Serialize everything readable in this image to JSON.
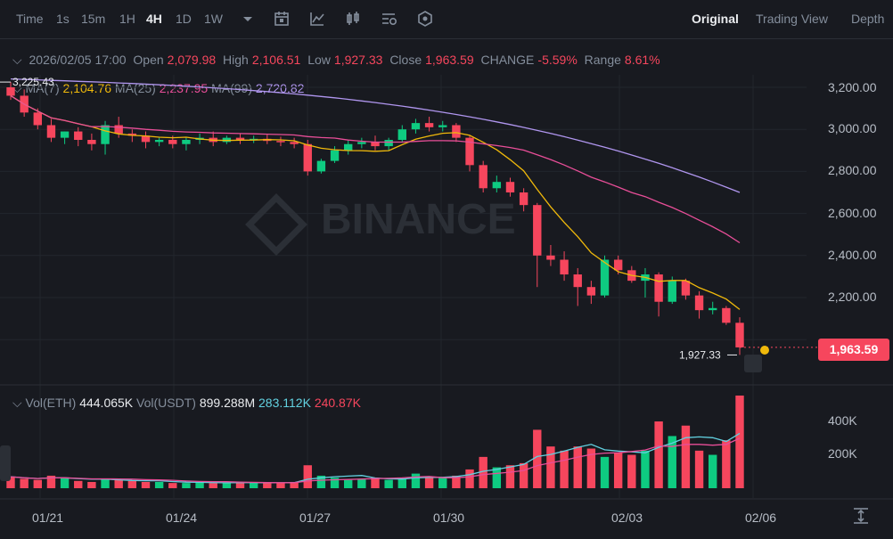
{
  "toolbar": {
    "timeframes": [
      "Time",
      "1s",
      "15m",
      "1H",
      "4H",
      "1D",
      "1W"
    ],
    "active_timeframe": "4H",
    "views": [
      "Original",
      "Trading View",
      "Depth"
    ],
    "active_view": "Original"
  },
  "ohlc": {
    "date": "2026/02/05 17:00",
    "open_label": "Open",
    "open": "2,079.98",
    "high_label": "High",
    "high": "2,106.51",
    "low_label": "Low",
    "low": "1,927.33",
    "close_label": "Close",
    "close": "1,963.59",
    "change_label": "CHANGE",
    "change": "-5.59%",
    "range_label": "Range",
    "range": "8.61%"
  },
  "ma": {
    "ma7_label": "MA(7)",
    "ma7": "2,104.76",
    "ma25_label": "MA(25)",
    "ma25": "2,237.95",
    "ma99_label": "MA(99)",
    "ma99": "2,720.82"
  },
  "volume": {
    "vol_eth_label": "Vol(ETH)",
    "vol_eth": "444.065K",
    "vol_usdt_label": "Vol(USDT)",
    "vol_usdt": "899.288M",
    "ma_a": "283.112K",
    "ma_b": "240.87K",
    "axis": [
      "400K",
      "200K"
    ]
  },
  "price_axis": [
    "3,200.00",
    "3,000.00",
    "2,800.00",
    "2,600.00",
    "2,400.00",
    "2,200.00"
  ],
  "current_price": "1,963.59",
  "high_marker": "3,225.43",
  "low_marker": "1,927.33",
  "date_axis": [
    "01/21",
    "01/24",
    "01/27",
    "01/30",
    "02/03",
    "02/06"
  ],
  "watermark": "BINANCE",
  "colors": {
    "up": "#0ecb81",
    "down": "#f6465d",
    "ma7": "#f0b90b",
    "ma25": "#e84e98",
    "ma99": "#b096ef",
    "background": "#181a20"
  },
  "chart_data": {
    "type": "candlestick",
    "ylim": [
      1900,
      3300
    ],
    "ohlc": [
      {
        "o": 3200,
        "h": 3225,
        "c": 3160,
        "l": 3140
      },
      {
        "o": 3160,
        "h": 3190,
        "c": 3080,
        "l": 3060
      },
      {
        "o": 3080,
        "h": 3100,
        "c": 3020,
        "l": 3000
      },
      {
        "o": 3020,
        "h": 3050,
        "c": 2960,
        "l": 2940
      },
      {
        "o": 2960,
        "h": 2990,
        "c": 2990,
        "l": 2930
      },
      {
        "o": 2990,
        "h": 3010,
        "c": 2950,
        "l": 2920
      },
      {
        "o": 2950,
        "h": 2980,
        "c": 2930,
        "l": 2900
      },
      {
        "o": 2930,
        "h": 3040,
        "c": 3020,
        "l": 2880
      },
      {
        "o": 3020,
        "h": 3060,
        "c": 2980,
        "l": 2960
      },
      {
        "o": 2980,
        "h": 3000,
        "c": 2970,
        "l": 2940
      },
      {
        "o": 2970,
        "h": 2990,
        "c": 2940,
        "l": 2910
      },
      {
        "o": 2940,
        "h": 2960,
        "c": 2950,
        "l": 2920
      },
      {
        "o": 2950,
        "h": 2970,
        "c": 2930,
        "l": 2910
      },
      {
        "o": 2930,
        "h": 2960,
        "c": 2950,
        "l": 2900
      },
      {
        "o": 2950,
        "h": 2980,
        "c": 2960,
        "l": 2930
      },
      {
        "o": 2960,
        "h": 2990,
        "c": 2940,
        "l": 2920
      },
      {
        "o": 2940,
        "h": 2970,
        "c": 2960,
        "l": 2930
      },
      {
        "o": 2960,
        "h": 2980,
        "c": 2950,
        "l": 2930
      },
      {
        "o": 2950,
        "h": 2970,
        "c": 2955,
        "l": 2935
      },
      {
        "o": 2955,
        "h": 2975,
        "c": 2945,
        "l": 2930
      },
      {
        "o": 2945,
        "h": 2965,
        "c": 2940,
        "l": 2920
      },
      {
        "o": 2940,
        "h": 2960,
        "c": 2930,
        "l": 2910
      },
      {
        "o": 2930,
        "h": 2950,
        "c": 2800,
        "l": 2780
      },
      {
        "o": 2800,
        "h": 2860,
        "c": 2850,
        "l": 2790
      },
      {
        "o": 2850,
        "h": 2920,
        "c": 2900,
        "l": 2840
      },
      {
        "o": 2900,
        "h": 2950,
        "c": 2930,
        "l": 2880
      },
      {
        "o": 2930,
        "h": 2960,
        "c": 2940,
        "l": 2910
      },
      {
        "o": 2940,
        "h": 2970,
        "c": 2920,
        "l": 2900
      },
      {
        "o": 2920,
        "h": 2960,
        "c": 2950,
        "l": 2900
      },
      {
        "o": 2950,
        "h": 3020,
        "c": 3000,
        "l": 2940
      },
      {
        "o": 3000,
        "h": 3050,
        "c": 3030,
        "l": 2980
      },
      {
        "o": 3030,
        "h": 3060,
        "c": 3010,
        "l": 2990
      },
      {
        "o": 3010,
        "h": 3040,
        "c": 3020,
        "l": 2990
      },
      {
        "o": 3020,
        "h": 3030,
        "c": 2960,
        "l": 2940
      },
      {
        "o": 2960,
        "h": 2970,
        "c": 2830,
        "l": 2800
      },
      {
        "o": 2830,
        "h": 2850,
        "c": 2720,
        "l": 2700
      },
      {
        "o": 2720,
        "h": 2780,
        "c": 2750,
        "l": 2700
      },
      {
        "o": 2750,
        "h": 2770,
        "c": 2700,
        "l": 2680
      },
      {
        "o": 2700,
        "h": 2720,
        "c": 2640,
        "l": 2610
      },
      {
        "o": 2640,
        "h": 2650,
        "c": 2400,
        "l": 2250
      },
      {
        "o": 2400,
        "h": 2450,
        "c": 2380,
        "l": 2350
      },
      {
        "o": 2380,
        "h": 2420,
        "c": 2310,
        "l": 2280
      },
      {
        "o": 2310,
        "h": 2340,
        "c": 2250,
        "l": 2160
      },
      {
        "o": 2250,
        "h": 2280,
        "c": 2210,
        "l": 2170
      },
      {
        "o": 2210,
        "h": 2400,
        "c": 2380,
        "l": 2200
      },
      {
        "o": 2380,
        "h": 2400,
        "c": 2330,
        "l": 2310
      },
      {
        "o": 2330,
        "h": 2350,
        "c": 2280,
        "l": 2270
      },
      {
        "o": 2280,
        "h": 2340,
        "c": 2310,
        "l": 2200
      },
      {
        "o": 2310,
        "h": 2320,
        "c": 2180,
        "l": 2110
      },
      {
        "o": 2180,
        "h": 2300,
        "c": 2280,
        "l": 2170
      },
      {
        "o": 2280,
        "h": 2290,
        "c": 2210,
        "l": 2190
      },
      {
        "o": 2210,
        "h": 2230,
        "c": 2140,
        "l": 2100
      },
      {
        "o": 2140,
        "h": 2180,
        "c": 2150,
        "l": 2120
      },
      {
        "o": 2150,
        "h": 2160,
        "c": 2080,
        "l": 2070
      },
      {
        "o": 2080,
        "h": 2106,
        "c": 1963,
        "l": 1927
      }
    ],
    "volume": [
      55,
      45,
      40,
      60,
      50,
      35,
      30,
      45,
      40,
      35,
      30,
      30,
      25,
      25,
      30,
      25,
      25,
      30,
      25,
      25,
      25,
      30,
      110,
      60,
      50,
      40,
      45,
      50,
      40,
      45,
      70,
      55,
      50,
      60,
      90,
      150,
      100,
      110,
      120,
      280,
      200,
      180,
      200,
      190,
      150,
      170,
      160,
      180,
      320,
      250,
      300,
      180,
      160,
      230,
      444
    ]
  }
}
